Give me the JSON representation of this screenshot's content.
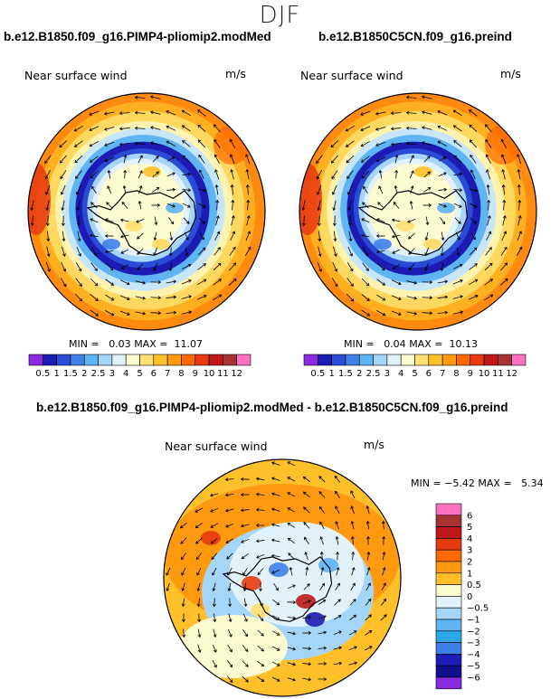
{
  "season": "DJF",
  "panels": [
    {
      "title": "b.e12.B1850.f09_g16.PIMP4-pliomip2.modMed",
      "variable": "Near surface wind",
      "units": "m/s",
      "min_label": "MIN =",
      "min_value": "0.03",
      "max_label": "MAX =",
      "max_value": "11.07"
    },
    {
      "title": "b.e12.B1850C5CN.f09_g16.preind",
      "variable": "Near surface wind",
      "units": "m/s",
      "min_label": "MIN =",
      "min_value": "0.04",
      "max_label": "MAX =",
      "max_value": "10.13"
    },
    {
      "title": "b.e12.B1850.f09_g16.PIMP4-pliomip2.modMed - b.e12.B1850C5CN.f09_g16.preind",
      "variable": "Near surface wind",
      "units": "m/s",
      "min_label": "MIN =",
      "min_value": "−5.42",
      "max_label": "MAX =",
      "max_value": "5.34"
    }
  ],
  "colorbar_speed": {
    "labels": [
      "0.5",
      "1",
      "1.5",
      "2",
      "2.5",
      "3",
      "4",
      "5",
      "6",
      "7",
      "8",
      "9",
      "10",
      "11",
      "12"
    ],
    "colors": [
      "#8a2be2",
      "#1c1cb4",
      "#2a4bd7",
      "#3f7fe8",
      "#5fb4f4",
      "#a5d5f8",
      "#e1f2fb",
      "#fffbd0",
      "#ffe070",
      "#ffc02a",
      "#ff9a10",
      "#ff6a00",
      "#e83a10",
      "#c01818",
      "#a83232",
      "#ff70c0"
    ]
  },
  "colorbar_diff": {
    "labels": [
      "6",
      "5",
      "4",
      "3",
      "2",
      "1",
      "0.5",
      "0",
      "−0.5",
      "−1",
      "−2",
      "−3",
      "−4",
      "−5",
      "−6"
    ],
    "colors": [
      "#ff70c0",
      "#a83232",
      "#c01818",
      "#e83a10",
      "#ff6a00",
      "#ff9a10",
      "#ffc02a",
      "#fffbd0",
      "#e1f2fb",
      "#a5d5f8",
      "#5fb4f4",
      "#2aa7e8",
      "#3f7fe8",
      "#1c1cb4",
      "#101090",
      "#8a2be2"
    ]
  }
}
